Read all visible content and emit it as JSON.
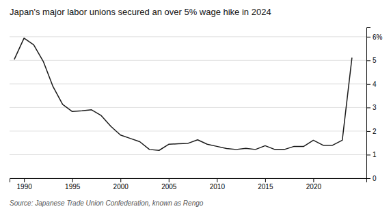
{
  "chart_data": {
    "type": "line",
    "title": "Japan's major labor unions secured an over 5% wage hike in 2024",
    "source": "Source: Japanese Trade Union Confederation, known as Rengo",
    "color": "#1a1a1a",
    "x": [
      1989,
      1990,
      1991,
      1992,
      1993,
      1994,
      1995,
      1996,
      1997,
      1998,
      1999,
      2000,
      2001,
      2002,
      2003,
      2004,
      2005,
      2006,
      2007,
      2008,
      2009,
      2010,
      2011,
      2012,
      2013,
      2014,
      2015,
      2016,
      2017,
      2018,
      2019,
      2020,
      2021,
      2022,
      2023,
      2024
    ],
    "values": [
      5.05,
      5.94,
      5.66,
      4.95,
      3.89,
      3.13,
      2.83,
      2.86,
      2.9,
      2.66,
      2.2,
      1.83,
      1.69,
      1.55,
      1.22,
      1.18,
      1.44,
      1.46,
      1.48,
      1.63,
      1.44,
      1.35,
      1.26,
      1.22,
      1.27,
      1.22,
      1.38,
      1.22,
      1.22,
      1.35,
      1.35,
      1.61,
      1.4,
      1.4,
      1.61,
      5.1
    ],
    "xlim": [
      1988.5,
      2025.5
    ],
    "xticks": [
      1990,
      1995,
      2000,
      2005,
      2010,
      2015,
      2020
    ],
    "ylim": [
      0,
      6.4
    ],
    "yticks": [
      0,
      1,
      2,
      3,
      4,
      5,
      {
        "value": 6,
        "label": "6%"
      }
    ],
    "grid": "y"
  }
}
